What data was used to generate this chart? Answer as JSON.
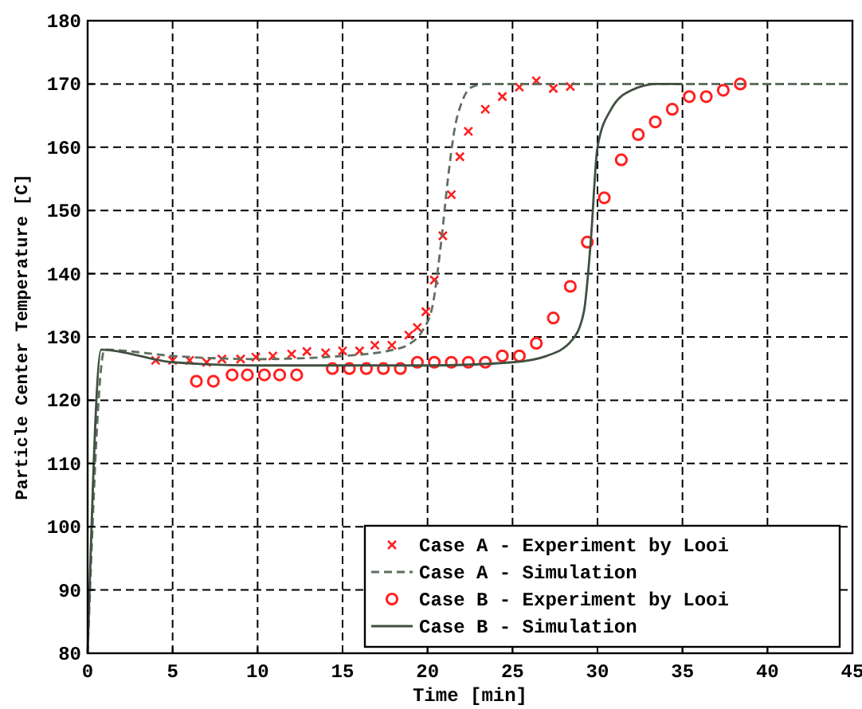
{
  "chart_data": {
    "type": "scatter",
    "xlabel": "Time [min]",
    "ylabel": "Particle Center Temperature [C]",
    "xlim": [
      0,
      45
    ],
    "ylim": [
      80,
      180
    ],
    "xticks": [
      0,
      5,
      10,
      15,
      20,
      25,
      30,
      35,
      40,
      45
    ],
    "yticks": [
      80,
      90,
      100,
      110,
      120,
      130,
      140,
      150,
      160,
      170,
      180
    ],
    "grid": true,
    "legend": "bottom right",
    "series": [
      {
        "name": "Case A - Experiment by Looi",
        "marker": "cross",
        "color": "#ff2020",
        "x": [
          4,
          5,
          6,
          7,
          7.9,
          9,
          9.9,
          10.9,
          12,
          12.9,
          14,
          15,
          16,
          16.9,
          17.9,
          18.9,
          19.4,
          19.9,
          20.4,
          20.9,
          21.4,
          21.9,
          22.4,
          23.4,
          24.4,
          25.4,
          26.4,
          27.4,
          28.4
        ],
        "values": [
          126.3,
          126.3,
          126.3,
          126,
          126.5,
          126.5,
          126.8,
          127,
          127.3,
          127.7,
          127.5,
          127.8,
          127.8,
          128.7,
          128.7,
          130.3,
          131.5,
          134,
          139,
          146,
          152.5,
          158.5,
          162.5,
          166,
          168,
          169.5,
          170.5,
          169.3,
          169.6
        ]
      },
      {
        "name": "Case A - Simulation",
        "type": "line",
        "line_style": "dashed",
        "color": "#607060",
        "x": [
          0,
          1,
          5,
          10,
          15,
          18,
          19,
          19.7,
          20.3,
          20.8,
          21.2,
          21.6,
          22,
          22.6,
          23.5,
          30,
          45
        ],
        "values": [
          80,
          128,
          127,
          126.5,
          127,
          128,
          129,
          131,
          135,
          145,
          155,
          163,
          167,
          169.5,
          170,
          170,
          170
        ]
      },
      {
        "name": "Case B - Experiment by Looi",
        "marker": "circle",
        "color": "#ff2020",
        "x": [
          6.4,
          7.4,
          8.5,
          9.4,
          10.4,
          11.3,
          12.3,
          14.4,
          15.4,
          16.4,
          17.4,
          18.4,
          19.4,
          20.4,
          21.4,
          22.4,
          23.4,
          24.4,
          25.4,
          26.4,
          27.4,
          28.4,
          29.4,
          30.4,
          31.4,
          32.4,
          33.4,
          34.4,
          35.4,
          36.4,
          37.4,
          38.4
        ],
        "values": [
          123,
          123,
          124,
          124,
          124,
          124,
          124,
          125,
          125,
          125,
          125,
          125,
          126,
          126,
          126,
          126,
          126,
          127,
          127,
          129,
          133,
          138,
          145,
          152,
          158,
          162,
          164,
          166,
          168,
          168,
          169,
          170
        ]
      },
      {
        "name": "Case B - Simulation",
        "type": "line",
        "line_style": "solid",
        "color": "#405040",
        "x": [
          0,
          0.8,
          5,
          10,
          15,
          20,
          25,
          27,
          28.5,
          29.2,
          29.6,
          30,
          30.8,
          32,
          33.5,
          35
        ],
        "values": [
          80,
          128,
          126,
          125.5,
          125.5,
          125.5,
          126,
          127,
          129.5,
          134,
          145,
          160,
          166,
          169,
          170,
          170
        ]
      }
    ]
  }
}
